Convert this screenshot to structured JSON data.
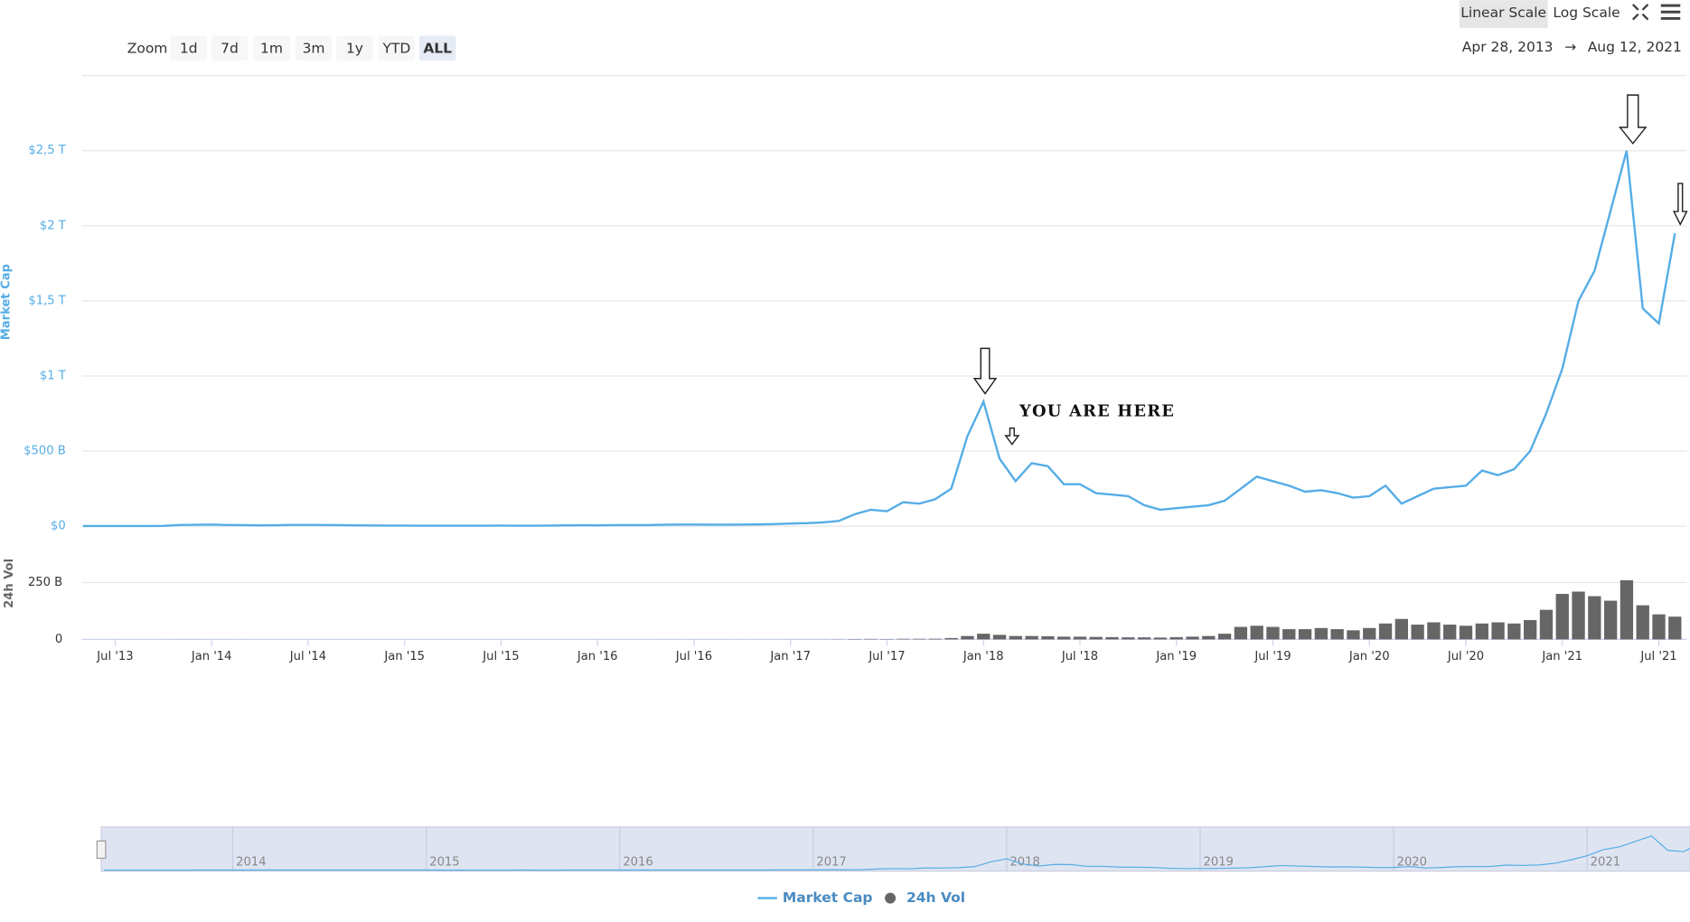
{
  "chart_data": {
    "type": "line",
    "zoom": {
      "label": "Zoom",
      "buttons": [
        "1d",
        "7d",
        "1m",
        "3m",
        "1y",
        "YTD",
        "ALL"
      ],
      "selected": "ALL"
    },
    "scale_buttons": [
      "Linear Scale",
      "Log Scale"
    ],
    "selected_scale": "Linear Scale",
    "range": {
      "from": "Apr 28, 2013",
      "separator": "→",
      "to": "Aug 12, 2021"
    },
    "annotation": "YOU ARE HERE",
    "y_label": "Market Cap",
    "y2_label": "24h Vol",
    "x": [
      "2013-05",
      "2013-06",
      "2013-07",
      "2013-08",
      "2013-09",
      "2013-10",
      "2013-11",
      "2013-12",
      "2014-01",
      "2014-02",
      "2014-03",
      "2014-04",
      "2014-05",
      "2014-06",
      "2014-07",
      "2014-08",
      "2014-09",
      "2014-10",
      "2014-11",
      "2014-12",
      "2015-01",
      "2015-02",
      "2015-03",
      "2015-04",
      "2015-05",
      "2015-06",
      "2015-07",
      "2015-08",
      "2015-09",
      "2015-10",
      "2015-11",
      "2015-12",
      "2016-01",
      "2016-02",
      "2016-03",
      "2016-04",
      "2016-05",
      "2016-06",
      "2016-07",
      "2016-08",
      "2016-09",
      "2016-10",
      "2016-11",
      "2016-12",
      "2017-01",
      "2017-02",
      "2017-03",
      "2017-04",
      "2017-05",
      "2017-06",
      "2017-07",
      "2017-08",
      "2017-09",
      "2017-10",
      "2017-11",
      "2017-12",
      "2018-01",
      "2018-02",
      "2018-03",
      "2018-04",
      "2018-05",
      "2018-06",
      "2018-07",
      "2018-08",
      "2018-09",
      "2018-10",
      "2018-11",
      "2018-12",
      "2019-01",
      "2019-02",
      "2019-03",
      "2019-04",
      "2019-05",
      "2019-06",
      "2019-07",
      "2019-08",
      "2019-09",
      "2019-10",
      "2019-11",
      "2019-12",
      "2020-01",
      "2020-02",
      "2020-03",
      "2020-04",
      "2020-05",
      "2020-06",
      "2020-07",
      "2020-08",
      "2020-09",
      "2020-10",
      "2020-11",
      "2020-12",
      "2021-01",
      "2021-02",
      "2021-03",
      "2021-04",
      "2021-05",
      "2021-06",
      "2021-07",
      "2021-08"
    ],
    "series": [
      {
        "name": "Market Cap",
        "color": "#55ade6",
        "values": [
          0.0013,
          0.0012,
          0.0011,
          0.0013,
          0.0016,
          0.0025,
          0.008,
          0.009,
          0.011,
          0.008,
          0.007,
          0.006,
          0.0065,
          0.0085,
          0.0085,
          0.008,
          0.007,
          0.0055,
          0.005,
          0.0045,
          0.004,
          0.0035,
          0.0038,
          0.0034,
          0.0034,
          0.0036,
          0.0042,
          0.0034,
          0.0035,
          0.0045,
          0.006,
          0.0065,
          0.006,
          0.007,
          0.007,
          0.0075,
          0.009,
          0.011,
          0.011,
          0.01,
          0.01,
          0.011,
          0.012,
          0.014,
          0.018,
          0.02,
          0.025,
          0.035,
          0.08,
          0.11,
          0.1,
          0.16,
          0.15,
          0.18,
          0.25,
          0.6,
          0.83,
          0.45,
          0.3,
          0.42,
          0.4,
          0.28,
          0.28,
          0.22,
          0.21,
          0.2,
          0.14,
          0.11,
          0.12,
          0.13,
          0.14,
          0.17,
          0.25,
          0.33,
          0.3,
          0.27,
          0.23,
          0.24,
          0.22,
          0.19,
          0.2,
          0.27,
          0.15,
          0.2,
          0.25,
          0.26,
          0.27,
          0.37,
          0.34,
          0.38,
          0.5,
          0.75,
          1.05,
          1.5,
          1.7,
          2.1,
          2.5,
          1.45,
          1.35,
          1.95
        ]
      },
      {
        "name": "24h Vol",
        "color": "#666666",
        "axis": "y2",
        "values": [
          0.05,
          0.05,
          0.04,
          0.04,
          0.04,
          0.06,
          0.2,
          0.3,
          0.1,
          0.1,
          0.08,
          0.05,
          0.04,
          0.04,
          0.03,
          0.03,
          0.03,
          0.03,
          0.03,
          0.02,
          0.03,
          0.03,
          0.03,
          0.03,
          0.03,
          0.03,
          0.03,
          0.03,
          0.03,
          0.04,
          0.05,
          0.05,
          0.05,
          0.05,
          0.05,
          0.05,
          0.06,
          0.08,
          0.07,
          0.06,
          0.06,
          0.06,
          0.08,
          0.1,
          0.2,
          0.3,
          0.4,
          0.6,
          1.5,
          2,
          1.5,
          2.5,
          2.5,
          3,
          6,
          15,
          25,
          20,
          15,
          15,
          14,
          12,
          12,
          11,
          10,
          9,
          9,
          8,
          10,
          12,
          15,
          25,
          55,
          60,
          55,
          45,
          45,
          50,
          45,
          40,
          50,
          70,
          90,
          65,
          75,
          65,
          60,
          70,
          75,
          70,
          85,
          130,
          200,
          210,
          190,
          170,
          260,
          150,
          110,
          100
        ]
      }
    ],
    "xlim": [
      "2013-05",
      "2021-08"
    ],
    "xticks": [
      {
        "value": "2013-07",
        "label": "Jul '13"
      },
      {
        "value": "2014-01",
        "label": "Jan '14"
      },
      {
        "value": "2014-07",
        "label": "Jul '14"
      },
      {
        "value": "2015-01",
        "label": "Jan '15"
      },
      {
        "value": "2015-07",
        "label": "Jul '15"
      },
      {
        "value": "2016-01",
        "label": "Jan '16"
      },
      {
        "value": "2016-07",
        "label": "Jul '16"
      },
      {
        "value": "2017-01",
        "label": "Jan '17"
      },
      {
        "value": "2017-07",
        "label": "Jul '17"
      },
      {
        "value": "2018-01",
        "label": "Jan '18"
      },
      {
        "value": "2018-07",
        "label": "Jul '18"
      },
      {
        "value": "2019-01",
        "label": "Jan '19"
      },
      {
        "value": "2019-07",
        "label": "Jul '19"
      },
      {
        "value": "2020-01",
        "label": "Jan '20"
      },
      {
        "value": "2020-07",
        "label": "Jul '20"
      },
      {
        "value": "2021-01",
        "label": "Jan '21"
      },
      {
        "value": "2021-07",
        "label": "Jul '21"
      }
    ],
    "ylim": [
      0,
      3
    ],
    "yticks": [
      {
        "value": 0,
        "label": "$0"
      },
      {
        "value": 0.5,
        "label": "$500 B"
      },
      {
        "value": 1,
        "label": "$1 T"
      },
      {
        "value": 1.5,
        "label": "$1,5 T"
      },
      {
        "value": 2,
        "label": "$2 T"
      },
      {
        "value": 2.5,
        "label": "$2,5 T"
      }
    ],
    "y2lim": [
      0,
      360
    ],
    "y2ticks": [
      0,
      {
        "value": 250,
        "label": "250 B"
      }
    ],
    "grid": true,
    "navigator": {
      "xticks": [
        2014,
        2015,
        2016,
        2017,
        2018,
        2019,
        2020,
        2021
      ]
    }
  }
}
